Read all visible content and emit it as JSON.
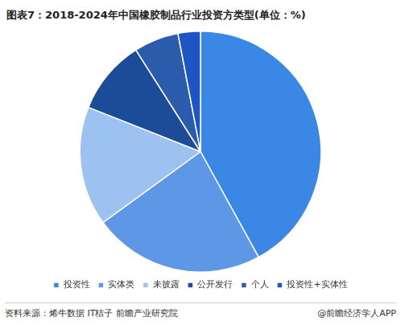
{
  "chart_data": {
    "type": "pie",
    "title": "图表7：2018-2024年中国橡胶制品行业投资方类型(单位：%)",
    "categories": [
      "投资性",
      "实体类",
      "未披露",
      "公开发行",
      "个人",
      "投资性+实体性"
    ],
    "values": [
      42,
      23,
      16,
      10,
      6,
      3
    ],
    "colors": [
      "#3b87e6",
      "#5d97e6",
      "#9dc1f1",
      "#1c4b98",
      "#2a5cab",
      "#1f55c2"
    ],
    "legend": "bottom",
    "data_labels": false
  },
  "source": "资料来源：烯牛数据 IT桔子 前瞻产业研究院",
  "credit": "@前瞻经济学人APP"
}
